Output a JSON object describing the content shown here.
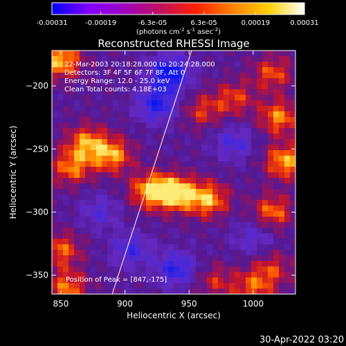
{
  "colorbar": {
    "tick_labels": [
      "-0.00031",
      "-0.00019",
      "-6.3e-05",
      "6.3e-05",
      "0.00019",
      "0.00031"
    ],
    "tick_values": [
      -0.00031,
      -0.00019,
      -6.3e-05,
      6.3e-05,
      0.00019,
      0.00031
    ],
    "range": [
      -0.00031,
      0.00031
    ],
    "units_parts": [
      "(photons cm",
      "-2",
      " s",
      "-1",
      " asec",
      "-2",
      ")"
    ],
    "colors": [
      "#0000ff",
      "#7f00ff",
      "#a000c0",
      "#c01060",
      "#ff2000",
      "#ff8000",
      "#ffd000",
      "#ffffff"
    ]
  },
  "chart_data": {
    "type": "heatmap",
    "title": "Reconstructed RHESSI Image",
    "xlabel": "Heliocentric X (arcsec)",
    "ylabel": "Heliocentric Y (arcsec)",
    "xlim": [
      843,
      1033
    ],
    "ylim": [
      -365,
      -172
    ],
    "x_ticks": [
      850,
      900,
      950,
      1000
    ],
    "y_ticks": [
      -350,
      -300,
      -250,
      -200
    ],
    "x_tick_labels": [
      "850",
      "900",
      "950",
      "1000"
    ],
    "y_tick_labels": [
      "−350",
      "−300",
      "−250",
      "−200"
    ],
    "annotations": [
      "22-Mar-2003 20:18:28.000 to 20:24:28.000",
      "Detectors: 3F 4F 5F 6F 7F 8F, Att 0",
      "Energy Range: 12.0 - 25.0 keV",
      "Clean    Total counts: 4.18E+03"
    ],
    "peak_label": "Position of Peak = [847,-175]",
    "peak": [
      847,
      -175
    ],
    "limb_line": [
      [
        890,
        -365
      ],
      [
        952,
        -172
      ]
    ],
    "hot_regions": [
      {
        "x": 940,
        "y": -285,
        "level": 1.0
      },
      {
        "x": 920,
        "y": -283,
        "level": 0.9
      },
      {
        "x": 965,
        "y": -290,
        "level": 0.85
      },
      {
        "x": 890,
        "y": -255,
        "level": 0.8
      },
      {
        "x": 870,
        "y": -245,
        "level": 0.75
      },
      {
        "x": 858,
        "y": -265,
        "level": 0.7
      },
      {
        "x": 850,
        "y": -330,
        "level": 0.65
      },
      {
        "x": 855,
        "y": -360,
        "level": 0.7
      },
      {
        "x": 850,
        "y": -180,
        "level": 0.9
      },
      {
        "x": 1015,
        "y": -190,
        "level": 0.6
      },
      {
        "x": 1020,
        "y": -225,
        "level": 0.75
      },
      {
        "x": 1025,
        "y": -260,
        "level": 0.85
      },
      {
        "x": 1015,
        "y": -300,
        "level": 0.7
      },
      {
        "x": 960,
        "y": -220,
        "level": 0.5
      },
      {
        "x": 985,
        "y": -210,
        "level": 0.55
      },
      {
        "x": 1000,
        "y": -360,
        "level": 0.6
      },
      {
        "x": 970,
        "y": -355,
        "level": 0.45
      },
      {
        "x": 1015,
        "y": -345,
        "level": 0.5
      }
    ],
    "cold_regions": [
      {
        "x": 935,
        "y": -190,
        "level": -1.0
      },
      {
        "x": 925,
        "y": -215,
        "level": -0.8
      },
      {
        "x": 940,
        "y": -345,
        "level": -0.75
      },
      {
        "x": 905,
        "y": -330,
        "level": -0.6
      },
      {
        "x": 985,
        "y": -245,
        "level": -0.55
      },
      {
        "x": 880,
        "y": -300,
        "level": -0.45
      },
      {
        "x": 1000,
        "y": -320,
        "level": -0.45
      }
    ]
  },
  "footer": {
    "timestamp": "30-Apr-2022 03:20"
  }
}
